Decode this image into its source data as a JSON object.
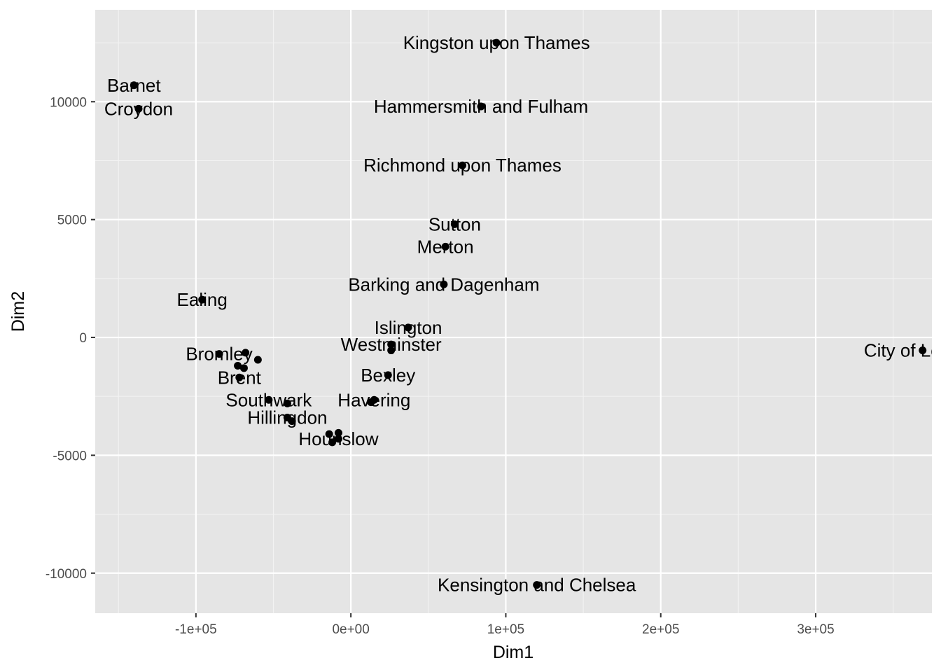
{
  "chart_data": {
    "type": "scatter",
    "xlabel": "Dim1",
    "ylabel": "Dim2",
    "xlim": [
      -165000,
      375000
    ],
    "ylim": [
      -11700,
      13900
    ],
    "xticks": [
      {
        "value": -100000,
        "label": "-1e+05"
      },
      {
        "value": 0,
        "label": "0e+00"
      },
      {
        "value": 100000,
        "label": "1e+05"
      },
      {
        "value": 200000,
        "label": "2e+05"
      },
      {
        "value": 300000,
        "label": "3e+05"
      }
    ],
    "yticks": [
      {
        "value": -10000,
        "label": "-10000"
      },
      {
        "value": -5000,
        "label": "-5000"
      },
      {
        "value": 0,
        "label": "0"
      },
      {
        "value": 5000,
        "label": "5000"
      },
      {
        "value": 10000,
        "label": "10000"
      }
    ],
    "points": [
      {
        "label": "Kingston upon Thames",
        "x": 94000,
        "y": 12500
      },
      {
        "label": "Barnet",
        "x": -140000,
        "y": 10700
      },
      {
        "label": "Croydon",
        "x": -137000,
        "y": 9700
      },
      {
        "label": "Hammersmith and Fulham",
        "x": 84000,
        "y": 9800
      },
      {
        "label": "Richmond upon Thames",
        "x": 72000,
        "y": 7300
      },
      {
        "label": "Sutton",
        "x": 67000,
        "y": 4800
      },
      {
        "label": "Merton",
        "x": 61000,
        "y": 3850
      },
      {
        "label": "Barking and Dagenham",
        "x": 60000,
        "y": 2250
      },
      {
        "label": "Ealing",
        "x": -96000,
        "y": 1600
      },
      {
        "label": "Islington",
        "x": 37000,
        "y": 420
      },
      {
        "label": "Westminster",
        "x": 26000,
        "y": -300
      },
      {
        "label": "",
        "x": 26000,
        "y": -550
      },
      {
        "label": "City of London",
        "x": 369000,
        "y": -550
      },
      {
        "label": "Bromley",
        "x": -85000,
        "y": -700
      },
      {
        "label": "",
        "x": -68000,
        "y": -650
      },
      {
        "label": "",
        "x": -60000,
        "y": -950
      },
      {
        "label": "",
        "x": -73000,
        "y": -1200
      },
      {
        "label": "",
        "x": -69000,
        "y": -1300
      },
      {
        "label": "Brent",
        "x": -72000,
        "y": -1700
      },
      {
        "label": "Bexley",
        "x": 24000,
        "y": -1600
      },
      {
        "label": "Southwark",
        "x": -53000,
        "y": -2650
      },
      {
        "label": "",
        "x": -41000,
        "y": -2800
      },
      {
        "label": "Havering",
        "x": 15000,
        "y": -2650
      },
      {
        "label": "",
        "x": 13000,
        "y": -2750
      },
      {
        "label": "Hillingdon",
        "x": -41000,
        "y": -3400
      },
      {
        "label": "",
        "x": -38000,
        "y": -3550
      },
      {
        "label": "",
        "x": -14000,
        "y": -4100
      },
      {
        "label": "",
        "x": -8000,
        "y": -4050
      },
      {
        "label": "Hounslow",
        "x": -8000,
        "y": -4300
      },
      {
        "label": "",
        "x": -12000,
        "y": -4450
      },
      {
        "label": "Kensington and Chelsea",
        "x": 120000,
        "y": -10500
      }
    ]
  },
  "colors": {
    "panel_background": "#e5e5e5",
    "grid_major": "#ffffff",
    "grid_minor": "#f2f2f2",
    "point": "#000000",
    "tick_text": "#4d4d4d",
    "axis_title": "#000000"
  }
}
